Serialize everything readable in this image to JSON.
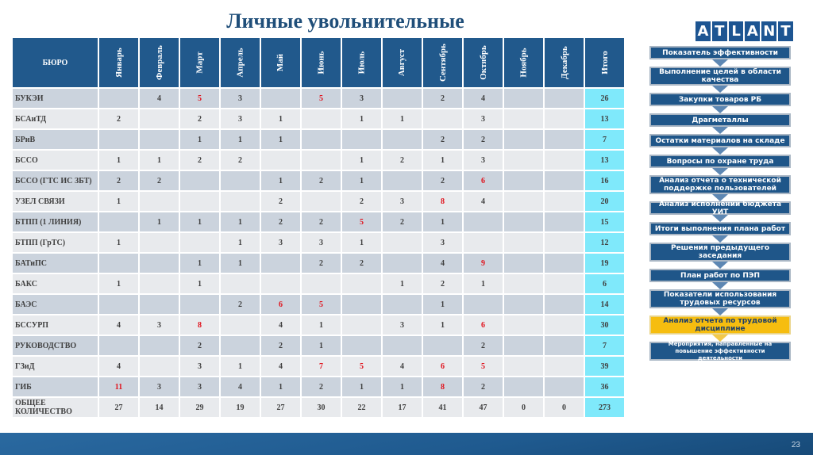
{
  "title": "Личные увольнительные",
  "logo": {
    "text": "ATLANT",
    "letters": [
      "A",
      "T",
      "L",
      "A",
      "N",
      "T"
    ]
  },
  "table": {
    "bureau_header": "БЮРО",
    "months": [
      "Январь",
      "Февраль",
      "Март",
      "Апрель",
      "Май",
      "Июнь",
      "Июль",
      "Август",
      "Сентябрь",
      "Октябрь",
      "Ноябрь",
      "Декабрь"
    ],
    "total_header": "Итого",
    "rows": [
      {
        "name": "БУКЭИ",
        "cells": [
          "",
          "4",
          "5",
          "3",
          "",
          "5",
          "3",
          "",
          "2",
          "4",
          "",
          ""
        ],
        "red": [
          2,
          5
        ],
        "total": "26"
      },
      {
        "name": "БСАиТД",
        "cells": [
          "2",
          "",
          "2",
          "3",
          "1",
          "",
          "1",
          "1",
          "",
          "3",
          "",
          ""
        ],
        "red": [],
        "total": "13"
      },
      {
        "name": "БРиВ",
        "cells": [
          "",
          "",
          "1",
          "1",
          "1",
          "",
          "",
          "",
          "2",
          "2",
          "",
          ""
        ],
        "red": [],
        "total": "7"
      },
      {
        "name": "БССО",
        "cells": [
          "1",
          "1",
          "2",
          "2",
          "",
          "",
          "1",
          "2",
          "1",
          "3",
          "",
          ""
        ],
        "red": [],
        "total": "13"
      },
      {
        "name": "БССО (ГТС ИС ЗБТ)",
        "cells": [
          "2",
          "2",
          "",
          "",
          "1",
          "2",
          "1",
          "",
          "2",
          "6",
          "",
          ""
        ],
        "red": [
          9
        ],
        "total": "16"
      },
      {
        "name": "УЗЕЛ СВЯЗИ",
        "cells": [
          "1",
          "",
          "",
          "",
          "2",
          "",
          "2",
          "3",
          "8",
          "4",
          "",
          ""
        ],
        "red": [
          8
        ],
        "total": "20"
      },
      {
        "name": "БТПП (1 ЛИНИЯ)",
        "cells": [
          "",
          "1",
          "1",
          "1",
          "2",
          "2",
          "5",
          "2",
          "1",
          "",
          "",
          ""
        ],
        "red": [
          6
        ],
        "total": "15"
      },
      {
        "name": "БТПП (ГрТС)",
        "cells": [
          "1",
          "",
          "",
          "1",
          "3",
          "3",
          "1",
          "",
          "3",
          "",
          "",
          ""
        ],
        "red": [],
        "total": "12"
      },
      {
        "name": "БАТиПС",
        "cells": [
          "",
          "",
          "1",
          "1",
          "",
          "2",
          "2",
          "",
          "4",
          "9",
          "",
          ""
        ],
        "red": [
          9
        ],
        "total": "19"
      },
      {
        "name": "БАКС",
        "cells": [
          "1",
          "",
          "1",
          "",
          "",
          "",
          "",
          "1",
          "2",
          "1",
          "",
          ""
        ],
        "red": [],
        "total": "6"
      },
      {
        "name": "БАЭС",
        "cells": [
          "",
          "",
          "",
          "2",
          "6",
          "5",
          "",
          "",
          "1",
          "",
          "",
          ""
        ],
        "red": [
          4,
          5
        ],
        "total": "14"
      },
      {
        "name": "БССУРП",
        "cells": [
          "4",
          "3",
          "8",
          "",
          "4",
          "1",
          "",
          "3",
          "1",
          "6",
          "",
          ""
        ],
        "red": [
          2,
          9
        ],
        "total": "30"
      },
      {
        "name": "РУКОВОДСТВО",
        "cells": [
          "",
          "",
          "2",
          "",
          "2",
          "1",
          "",
          "",
          "",
          "2",
          "",
          ""
        ],
        "red": [],
        "total": "7"
      },
      {
        "name": "ГЗиД",
        "cells": [
          "4",
          "",
          "3",
          "1",
          "4",
          "7",
          "5",
          "4",
          "6",
          "5",
          "",
          ""
        ],
        "red": [
          5,
          6,
          8,
          9
        ],
        "total": "39"
      },
      {
        "name": "ГИБ",
        "cells": [
          "11",
          "3",
          "3",
          "4",
          "1",
          "2",
          "1",
          "1",
          "8",
          "2",
          "",
          ""
        ],
        "red": [
          0,
          8
        ],
        "total": "36"
      },
      {
        "name": "ОБЩЕЕ КОЛИЧЕСТВО",
        "cells": [
          "27",
          "14",
          "29",
          "19",
          "27",
          "30",
          "22",
          "17",
          "41",
          "47",
          "0",
          "0"
        ],
        "red": [],
        "total": "273"
      }
    ]
  },
  "flow": {
    "steps": [
      {
        "label": "Показатель эффективности",
        "state": "normal"
      },
      {
        "label": "Выполнение целей в области качества",
        "state": "normal"
      },
      {
        "label": "Закупки товаров РБ",
        "state": "normal"
      },
      {
        "label": "Драгметаллы",
        "state": "normal"
      },
      {
        "label": "Остатки материалов на складе",
        "state": "normal"
      },
      {
        "label": "Вопросы по охране труда",
        "state": "normal"
      },
      {
        "label": "Анализ отчета о технической поддержке пользователей",
        "state": "normal"
      },
      {
        "label": "Анализ исполнении бюджета УИТ",
        "state": "normal"
      },
      {
        "label": "Итоги выполнения плана работ",
        "state": "normal"
      },
      {
        "label": "Решения предыдущего заседания",
        "state": "normal"
      },
      {
        "label": "План работ по ПЭП",
        "state": "normal"
      },
      {
        "label": "Показатели использования трудовых ресурсов",
        "state": "normal"
      },
      {
        "label": "Анализ отчета по трудовой дисциплине",
        "state": "active"
      },
      {
        "label": "Мероприятия, направленные на повышение эффективности деятельности",
        "state": "normal"
      }
    ]
  },
  "footer": {
    "page_number": "23"
  },
  "colors": {
    "header_blue": "#21598c",
    "total_cyan": "#7fe9fb",
    "highlight_red": "#e0141e",
    "active_step_yellow": "#f6bd0f"
  }
}
